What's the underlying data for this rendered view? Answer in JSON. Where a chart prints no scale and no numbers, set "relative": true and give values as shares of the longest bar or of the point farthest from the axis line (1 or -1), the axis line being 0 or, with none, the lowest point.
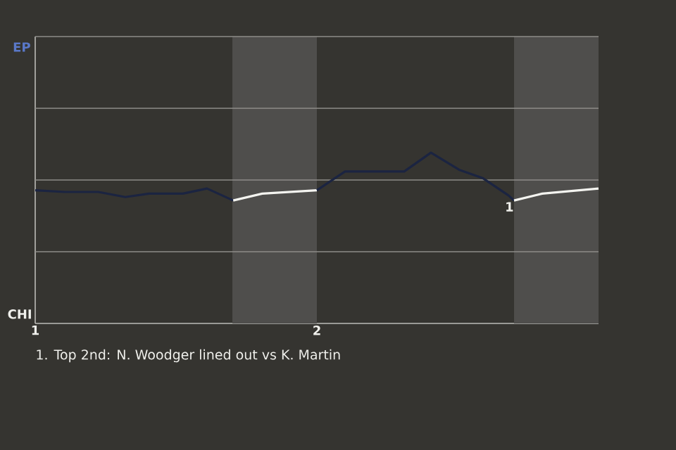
{
  "chart_data": {
    "type": "line",
    "relative": true,
    "xlim": [
      1,
      3
    ],
    "xticks": [
      1,
      2
    ],
    "ref_lines": [
      {
        "axis": "y",
        "value": 0.42,
        "color": "#8e8d89"
      },
      {
        "axis": "y",
        "value": 0.84,
        "color": "#8e8d89"
      },
      {
        "axis": "y",
        "value": 1.26,
        "color": "#8e8d89"
      },
      {
        "axis": "y",
        "value": 1.68,
        "color": "#8e8d89"
      }
    ],
    "series": [
      {
        "color": "#1b2441",
        "x": [
          1.0,
          1.105,
          1.224,
          1.32,
          1.404,
          1.524,
          1.61,
          1.703
        ],
        "values": [
          0.78,
          0.77,
          0.77,
          0.74,
          0.76,
          0.76,
          0.79,
          0.72
        ]
      },
      {
        "color": "#f4f4f0",
        "x": [
          1.703,
          1.806,
          2.0
        ],
        "values": [
          0.72,
          0.76,
          0.78
        ]
      },
      {
        "color": "#1b2441",
        "x": [
          2.0,
          2.1,
          2.31,
          2.405,
          2.505,
          2.59,
          2.68,
          2.7
        ],
        "values": [
          0.78,
          0.89,
          0.89,
          1.0,
          0.9,
          0.85,
          0.75,
          0.72
        ]
      },
      {
        "color": "#f4f4f0",
        "x": [
          2.7,
          2.8,
          3.0
        ],
        "values": [
          0.72,
          0.76,
          0.79
        ]
      }
    ],
    "bands": [
      {
        "axis": "x",
        "from": 1.7,
        "to": 2.0,
        "color": "#4f4e4c"
      },
      {
        "axis": "x",
        "from": 2.7,
        "to": 3.0,
        "color": "#4f4e4c"
      }
    ],
    "annotations": [
      "EP",
      "CHI",
      {
        "text": "1",
        "x": 2.7,
        "y": 0.72
      },
      "1. Top 2nd: N. Woodger lined out vs K. Martin"
    ]
  }
}
